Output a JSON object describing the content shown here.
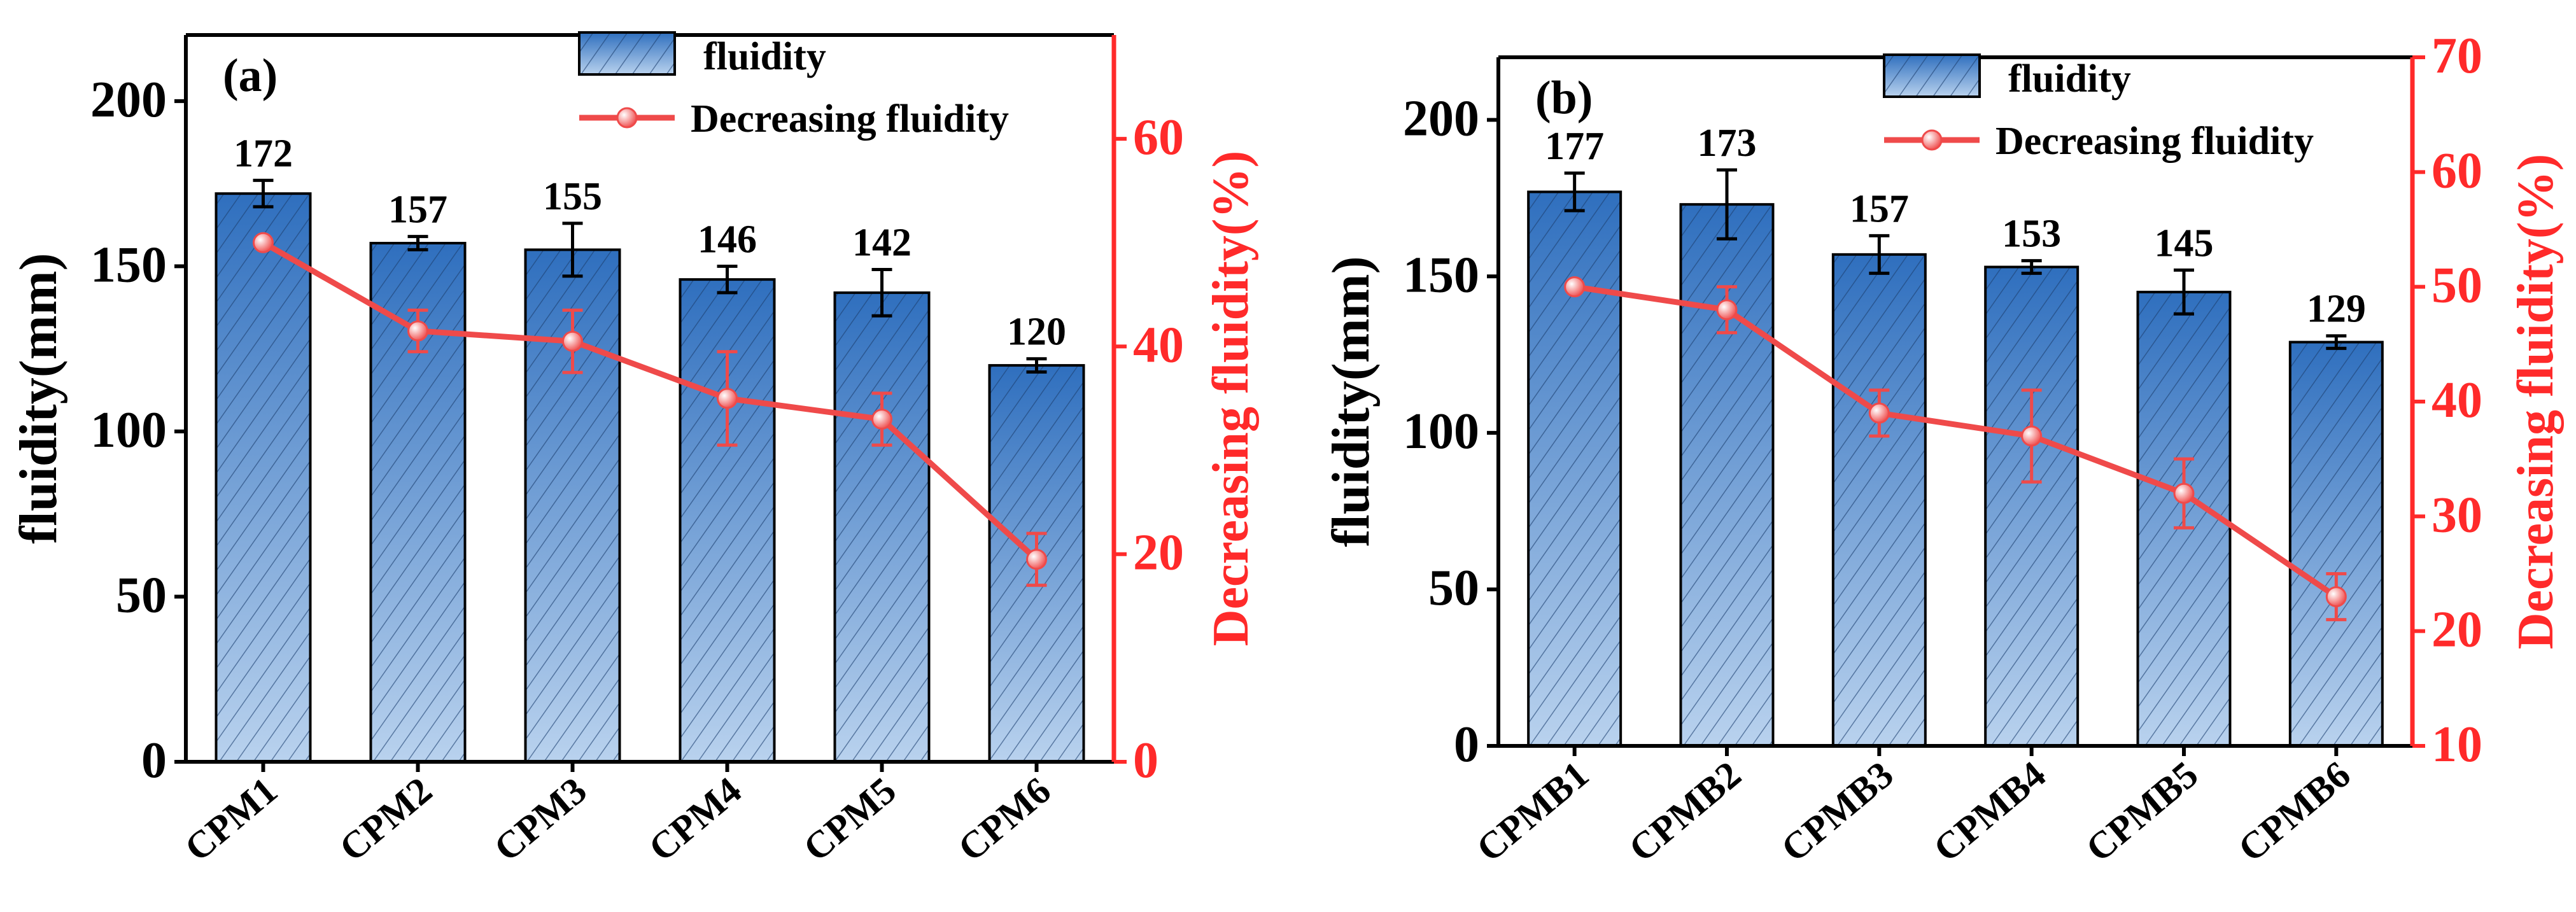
{
  "colors": {
    "bar_top": "#2f6fbe",
    "bar_bottom": "#b9d2ee",
    "line": "#ef4a4a",
    "right_axis": "#ff2a2a",
    "axis": "#000000"
  },
  "chart_data": [
    {
      "type": "bar",
      "panel_label": "(a)",
      "categories": [
        "CPM1",
        "CPM2",
        "CPM3",
        "CPM4",
        "CPM5",
        "CPM6"
      ],
      "bar_labels": [
        "172",
        "157",
        "155",
        "146",
        "142",
        "120"
      ],
      "series": [
        {
          "name": "fluidity",
          "axis": "left",
          "kind": "bar",
          "values": [
            172,
            157,
            155,
            146,
            142,
            120
          ],
          "errors": [
            4,
            2,
            8,
            4,
            7,
            2
          ]
        },
        {
          "name": "Decreasing fluidity",
          "axis": "right",
          "kind": "line",
          "values": [
            50,
            41.5,
            40.5,
            35,
            33,
            19.5
          ],
          "errors": [
            0,
            2,
            3,
            4.5,
            2.5,
            2.5
          ]
        }
      ],
      "ylabel": "fluidity(mm)",
      "ylim": [
        0,
        220
      ],
      "yticks": [
        "0",
        "50",
        "100",
        "150",
        "200"
      ],
      "y2label": "Decreasing fluidity(%)",
      "y2lim": [
        0,
        70
      ],
      "y2ticks": [
        "0",
        "20",
        "40",
        "60"
      ],
      "legend": {
        "position": "top-right",
        "entries": [
          "fluidity",
          "Decreasing fluidity"
        ]
      }
    },
    {
      "type": "bar",
      "panel_label": "(b)",
      "categories": [
        "CPMB1",
        "CPMB2",
        "CPMB3",
        "CPMB4",
        "CPMB5",
        "CPMB6"
      ],
      "bar_labels": [
        "177",
        "173",
        "157",
        "153",
        "145",
        "129"
      ],
      "series": [
        {
          "name": "fluidity",
          "axis": "left",
          "kind": "bar",
          "values": [
            177,
            173,
            157,
            153,
            145,
            129
          ],
          "errors": [
            6,
            11,
            6,
            2,
            7,
            2
          ]
        },
        {
          "name": "Decreasing fluidity",
          "axis": "right",
          "kind": "line",
          "values": [
            50,
            48,
            39,
            37,
            32,
            23
          ],
          "errors": [
            0,
            2,
            2,
            4,
            3,
            2
          ]
        }
      ],
      "ylabel": "fluidity(mm)",
      "ylim": [
        0,
        220
      ],
      "yticks": [
        "0",
        "50",
        "100",
        "150",
        "200"
      ],
      "y2label": "Decreasing fluidity(%)",
      "y2lim": [
        10,
        70
      ],
      "y2ticks": [
        "10",
        "20",
        "30",
        "40",
        "50",
        "60",
        "70"
      ],
      "legend": {
        "position": "top-right",
        "entries": [
          "fluidity",
          "Decreasing fluidity"
        ]
      }
    }
  ]
}
